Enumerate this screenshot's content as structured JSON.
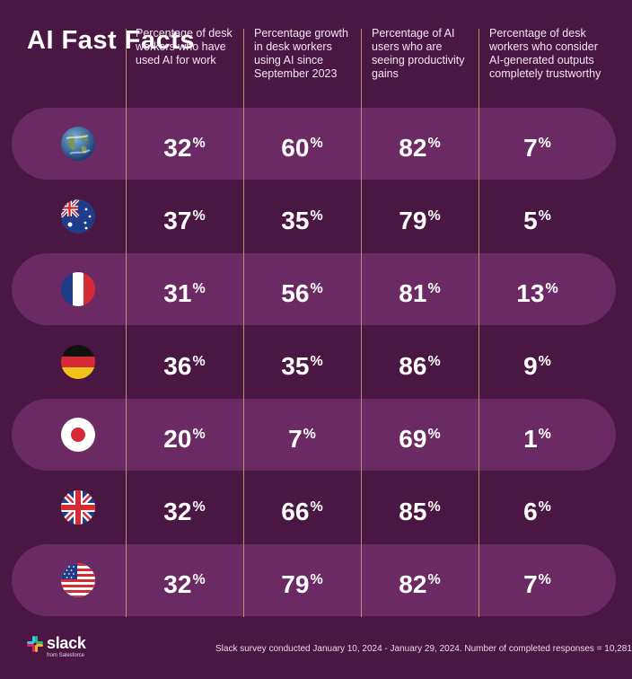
{
  "title": "AI Fast Facts",
  "columns": [
    "Percentage of desk workers who have used AI for work",
    "Percentage growth in desk workers using AI since September 2023",
    "Percentage of AI users who are seeing productivity gains",
    "Percentage of desk workers who consider AI-generated outputs completely trustworthy"
  ],
  "chart_data": {
    "type": "table",
    "rows": [
      {
        "flag": "globe-icon",
        "values": [
          32,
          60,
          82,
          7
        ]
      },
      {
        "flag": "australia-flag-icon",
        "values": [
          37,
          35,
          79,
          5
        ]
      },
      {
        "flag": "france-flag-icon",
        "values": [
          31,
          56,
          81,
          13
        ]
      },
      {
        "flag": "germany-flag-icon",
        "values": [
          36,
          35,
          86,
          9
        ]
      },
      {
        "flag": "japan-flag-icon",
        "values": [
          20,
          7,
          69,
          1
        ]
      },
      {
        "flag": "uk-flag-icon",
        "values": [
          32,
          66,
          85,
          6
        ]
      },
      {
        "flag": "usa-flag-icon",
        "values": [
          32,
          79,
          82,
          7
        ]
      }
    ],
    "unit": "%"
  },
  "footer": {
    "logo": "slack",
    "logo_sub": "from Salesforce",
    "note": "Slack survey conducted January 10, 2024 - January 29, 2024. Number of completed responses = 10,281"
  },
  "colors": {
    "background": "#4a1642",
    "band": "#6b2a64",
    "divider": "#c98a6e"
  }
}
